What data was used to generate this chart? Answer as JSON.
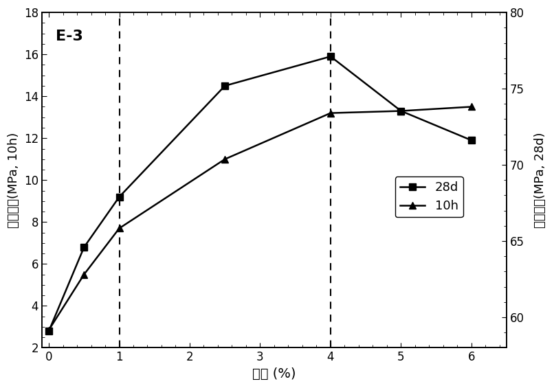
{
  "x": [
    0,
    0.5,
    1,
    2.5,
    4,
    5,
    6
  ],
  "y_10h": [
    2.85,
    5.5,
    7.7,
    11.0,
    13.2,
    13.3,
    13.5
  ],
  "y_28d": [
    2.8,
    6.8,
    9.2,
    14.5,
    15.9,
    13.3,
    11.9
  ],
  "xlabel": "掺量 (%)",
  "ylabel_left": "抗压强度(MPa, 10h)",
  "ylabel_right": "抗压强度(MPa, 28d)",
  "label_28d": "28d",
  "label_10h": "10h",
  "annotation": "E-3",
  "xlim": [
    -0.1,
    6.5
  ],
  "ylim_left": [
    2,
    18
  ],
  "ylim_right": [
    58,
    80
  ],
  "xticks": [
    0,
    1,
    2,
    3,
    4,
    5,
    6
  ],
  "yticks_left": [
    2,
    4,
    6,
    8,
    10,
    12,
    14,
    16,
    18
  ],
  "yticks_right": [
    60,
    65,
    70,
    75,
    80
  ],
  "vlines": [
    1,
    4
  ],
  "bg_color": "#ffffff",
  "line_color": "#000000"
}
